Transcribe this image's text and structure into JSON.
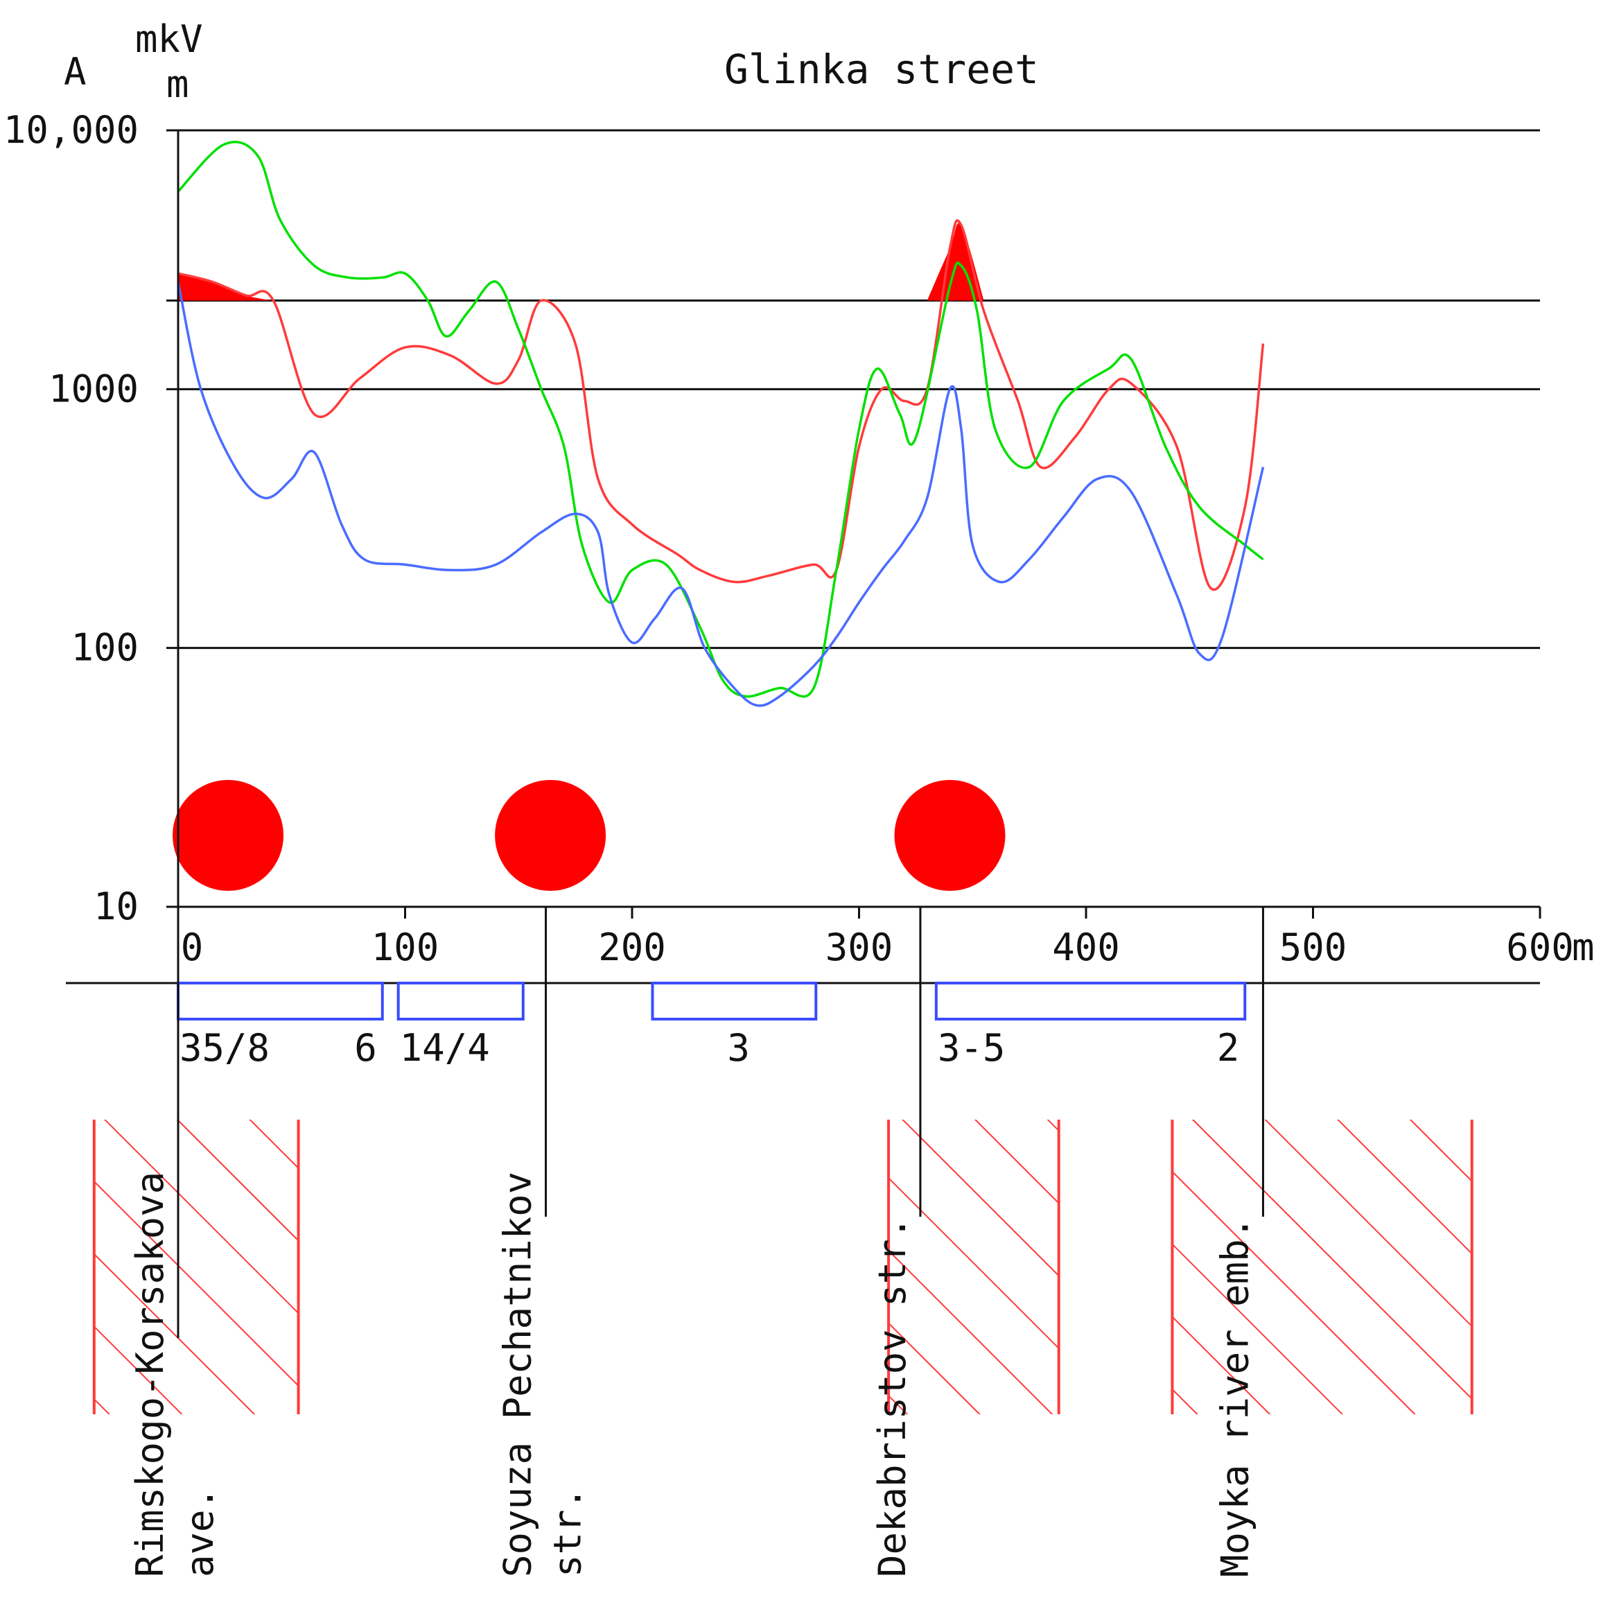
{
  "chart_data": {
    "type": "line",
    "title": "Glinka street",
    "yaxis": {
      "label_a": "A",
      "label_b": "mkV",
      "label_c": "m",
      "scale": "log",
      "ylim": [
        10,
        10000
      ],
      "ticks": [
        "10,000",
        "1000",
        "100",
        "10"
      ],
      "tick_values": [
        10000,
        1000,
        100,
        10
      ]
    },
    "xaxis": {
      "ticks": [
        "0",
        "100",
        "200",
        "300",
        "400",
        "500",
        "600"
      ],
      "tick_values": [
        0,
        100,
        200,
        300,
        400,
        500,
        600
      ],
      "unit": "m",
      "xlim": [
        0,
        600
      ]
    },
    "threshold": 2200,
    "series": [
      {
        "color": "#ff3b3b",
        "x": [
          0,
          15,
          30,
          42,
          60,
          80,
          100,
          120,
          140,
          150,
          160,
          175,
          185,
          200,
          220,
          230,
          245,
          260,
          280,
          290,
          300,
          310,
          320,
          330,
          340,
          345,
          355,
          370,
          380,
          395,
          410,
          420,
          440,
          455,
          470,
          478
        ],
        "y": [
          2800,
          2600,
          2300,
          2200,
          800,
          1100,
          1450,
          1350,
          1050,
          1300,
          2200,
          1500,
          450,
          300,
          230,
          200,
          180,
          190,
          210,
          200,
          600,
          1000,
          900,
          1000,
          3500,
          4300,
          2000,
          900,
          500,
          650,
          1000,
          1050,
          600,
          170,
          350,
          1500
        ]
      },
      {
        "color": "#00e000",
        "x": [
          0,
          20,
          35,
          45,
          60,
          75,
          90,
          100,
          110,
          118,
          128,
          140,
          150,
          160,
          170,
          178,
          190,
          200,
          215,
          230,
          240,
          250,
          265,
          280,
          290,
          300,
          308,
          318,
          325,
          340,
          345,
          352,
          360,
          375,
          390,
          410,
          420,
          435,
          450,
          470,
          478
        ],
        "y": [
          5800,
          8800,
          8000,
          4500,
          3000,
          2700,
          2700,
          2800,
          2200,
          1600,
          2000,
          2600,
          1700,
          1000,
          600,
          250,
          150,
          200,
          210,
          120,
          75,
          65,
          70,
          70,
          200,
          700,
          1200,
          800,
          650,
          2500,
          3000,
          2000,
          700,
          500,
          900,
          1200,
          1300,
          600,
          350,
          250,
          220
        ]
      },
      {
        "color": "#4a6cff",
        "x": [
          0,
          10,
          25,
          38,
          50,
          60,
          72,
          82,
          100,
          120,
          140,
          160,
          175,
          185,
          190,
          200,
          210,
          222,
          232,
          245,
          255,
          265,
          280,
          290,
          300,
          310,
          320,
          330,
          340,
          345,
          350,
          362,
          375,
          390,
          405,
          420,
          440,
          450,
          460,
          478
        ],
        "y": [
          2600,
          1000,
          500,
          380,
          450,
          570,
          300,
          220,
          210,
          200,
          210,
          280,
          330,
          280,
          160,
          105,
          130,
          170,
          100,
          70,
          60,
          65,
          85,
          110,
          150,
          200,
          260,
          380,
          1000,
          700,
          250,
          180,
          220,
          320,
          450,
          400,
          160,
          95,
          110,
          500
        ]
      }
    ],
    "event_markers_x": [
      22,
      164,
      340
    ],
    "zones": [
      {
        "from": 0,
        "to": 90,
        "label_left": "35/8",
        "label_right": "6"
      },
      {
        "from": 97,
        "to": 152,
        "label_left": "14/4",
        "label_right": ""
      },
      {
        "from": 209,
        "to": 281,
        "label_left": "3",
        "label_right": ""
      },
      {
        "from": 334,
        "to": 470,
        "label_left": "3-5",
        "label_right": "2"
      }
    ],
    "cross_streets": [
      {
        "x": 0,
        "line1": "Rimskogo-Korsakova",
        "line2": "ave."
      },
      {
        "x": 162,
        "line1": "Soyuza Pechatnikov",
        "line2": "str."
      },
      {
        "x": 327,
        "line1": "Dekabristov str.",
        "line2": ""
      },
      {
        "x": 478,
        "line1": "Moyka river emb.",
        "line2": ""
      }
    ],
    "hatched_areas": [
      {
        "from": -37,
        "to": 53
      },
      {
        "from": 313,
        "to": 388
      },
      {
        "from": 438,
        "to": 570
      }
    ]
  }
}
